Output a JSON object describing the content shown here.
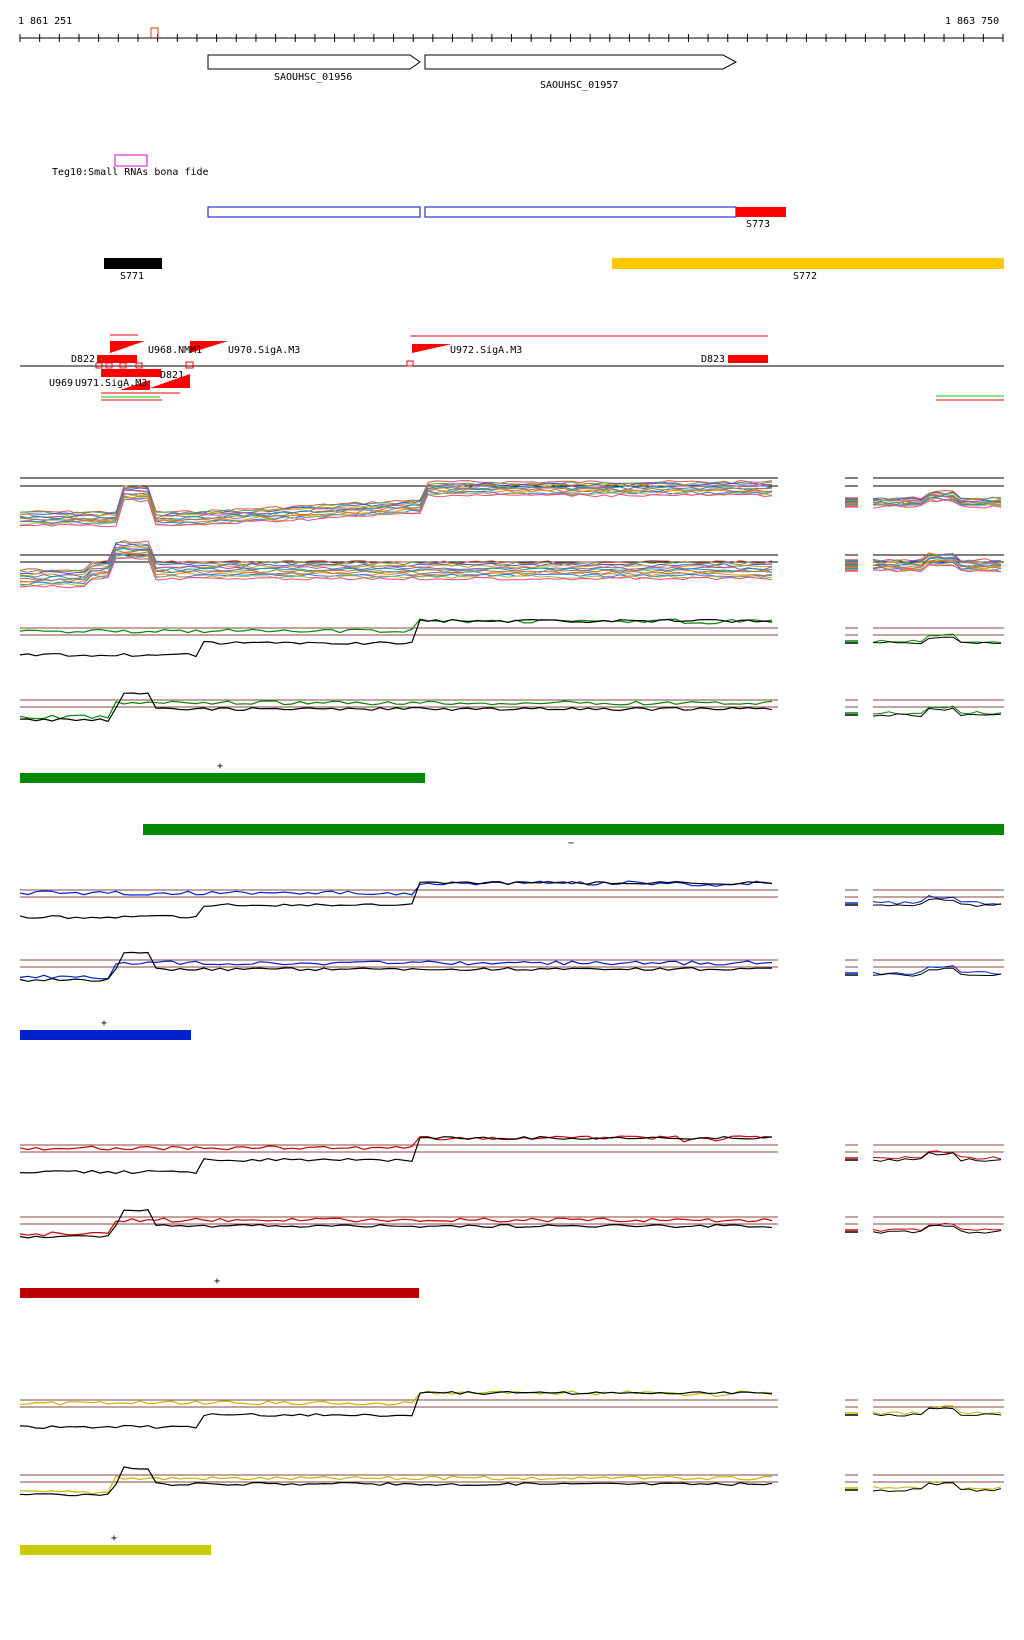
{
  "coords": {
    "start": "1 861 251",
    "end": "1 863 750"
  },
  "genes": [
    {
      "id": "gene-1956",
      "label": "SAOUHSC_01956"
    },
    {
      "id": "gene-1957",
      "label": "SAOUHSC_01957"
    }
  ],
  "srna": {
    "label": "Teg10:Small RNAs bona fide"
  },
  "segments": [
    {
      "label": "S773",
      "color": "#ff0000"
    },
    {
      "label": "S771",
      "color": "#000000"
    },
    {
      "label": "S772",
      "color": "#ffc800"
    }
  ],
  "features": [
    {
      "label": "U968.NMM1"
    },
    {
      "label": "U970.SigA.M3"
    },
    {
      "label": "U972.SigA.M3"
    },
    {
      "label": "D822"
    },
    {
      "label": "D821"
    },
    {
      "label": "D823"
    },
    {
      "label": "U969"
    },
    {
      "label": "U971.SigA.M3"
    }
  ],
  "strands": [
    {
      "sign": "+",
      "color": "#008800"
    },
    {
      "sign": "−",
      "color": "#008800"
    },
    {
      "sign": "+",
      "color": "#0022cc"
    },
    {
      "sign": "+",
      "color": "#bb0000"
    },
    {
      "sign": "+",
      "color": "#c8cc00"
    }
  ],
  "colors": {
    "gene_outline": "#000000",
    "transcript_outline": "#0000cc",
    "srna_box": "#dd00dd",
    "feature_red": "#ff0000"
  }
}
